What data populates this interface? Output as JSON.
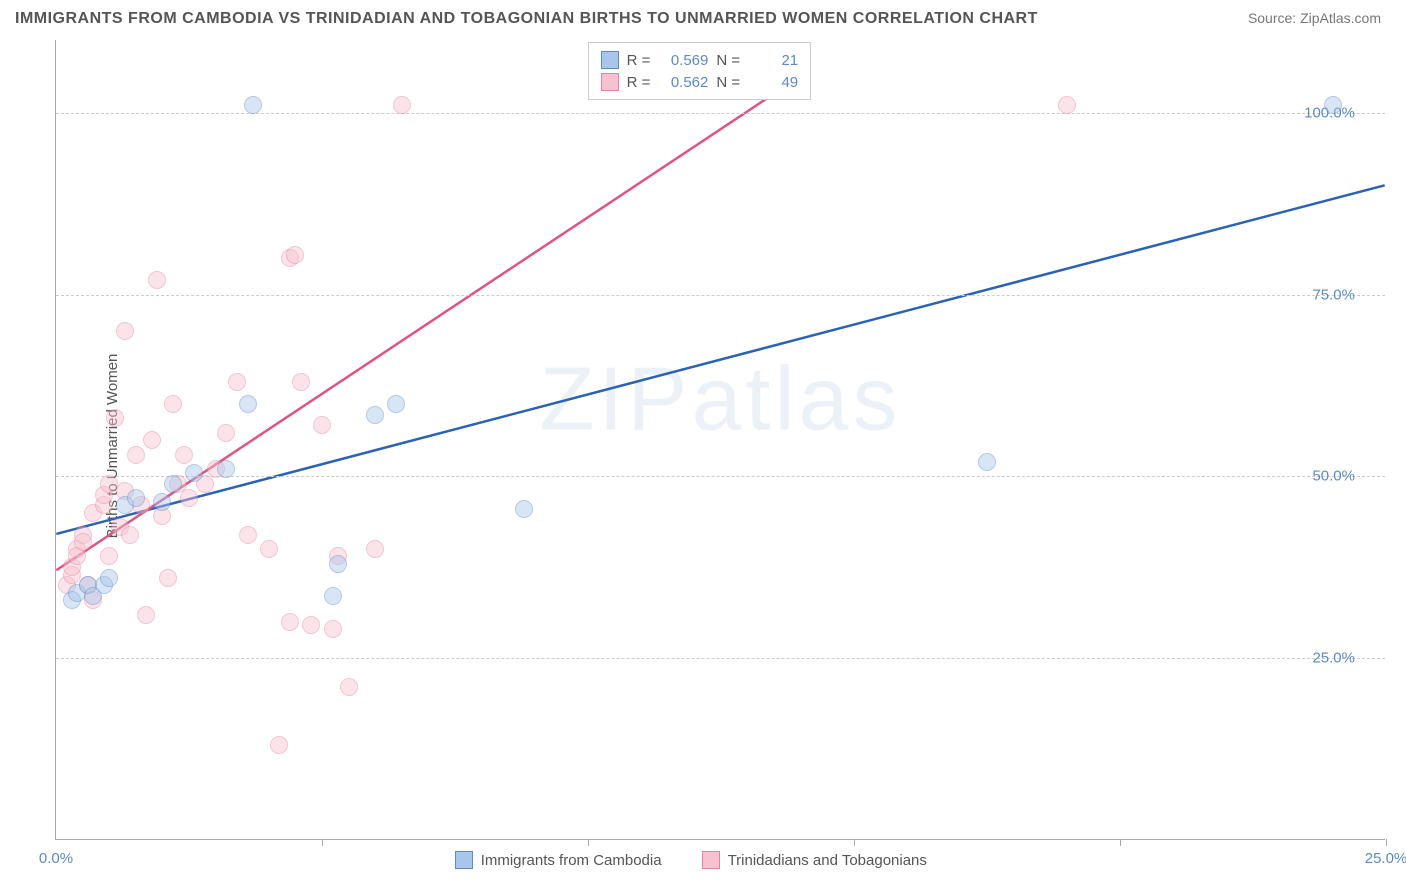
{
  "title": "IMMIGRANTS FROM CAMBODIA VS TRINIDADIAN AND TOBAGONIAN BIRTHS TO UNMARRIED WOMEN CORRELATION CHART",
  "source_label": "Source:",
  "source_value": "ZipAtlas.com",
  "ylabel": "Births to Unmarried Women",
  "watermark": "ZIPatlas",
  "chart": {
    "type": "scatter",
    "xlim": [
      0,
      25
    ],
    "ylim": [
      0,
      110
    ],
    "xticks": [
      0,
      5,
      10,
      15,
      20,
      25
    ],
    "yticks": [
      25,
      50,
      75,
      100
    ],
    "xtick_labels": [
      "0.0%",
      "",
      "",
      "",
      "",
      "25.0%"
    ],
    "ytick_labels": [
      "25.0%",
      "50.0%",
      "75.0%",
      "100.0%"
    ],
    "grid_color": "#cccccc",
    "background_color": "#ffffff",
    "point_radius": 9,
    "point_opacity": 0.45,
    "series": [
      {
        "name": "Immigrants from Cambodia",
        "color_fill": "#a8c6eb",
        "color_stroke": "#5b8ac6",
        "line_color": "#2a62b8",
        "R": "0.569",
        "N": "21",
        "trend": {
          "x1": 0,
          "y1": 42,
          "x2": 25,
          "y2": 90
        },
        "points": [
          [
            0.3,
            33
          ],
          [
            0.4,
            34
          ],
          [
            0.6,
            35
          ],
          [
            0.7,
            33.5
          ],
          [
            0.9,
            35
          ],
          [
            1.0,
            36
          ],
          [
            1.3,
            46
          ],
          [
            1.5,
            47
          ],
          [
            2.0,
            46.5
          ],
          [
            2.2,
            49
          ],
          [
            2.6,
            50.5
          ],
          [
            3.2,
            51
          ],
          [
            3.6,
            60
          ],
          [
            3.7,
            101
          ],
          [
            5.2,
            33.5
          ],
          [
            5.3,
            38
          ],
          [
            6.0,
            58.5
          ],
          [
            6.4,
            60
          ],
          [
            8.8,
            45.5
          ],
          [
            17.5,
            52
          ],
          [
            24.0,
            101
          ]
        ]
      },
      {
        "name": "Trinidadians and Tobagonians",
        "color_fill": "#f6c2cf",
        "color_stroke": "#e97fa2",
        "line_color": "#e05485",
        "R": "0.562",
        "N": "49",
        "trend": {
          "x1": 0,
          "y1": 37,
          "x2": 14,
          "y2": 105
        },
        "points": [
          [
            0.2,
            35
          ],
          [
            0.3,
            36.5
          ],
          [
            0.3,
            37.5
          ],
          [
            0.4,
            40
          ],
          [
            0.4,
            39
          ],
          [
            0.5,
            42
          ],
          [
            0.5,
            41
          ],
          [
            0.6,
            35
          ],
          [
            0.7,
            45
          ],
          [
            0.7,
            33
          ],
          [
            0.9,
            46
          ],
          [
            0.9,
            47.5
          ],
          [
            1.0,
            39
          ],
          [
            1.0,
            49
          ],
          [
            1.1,
            58
          ],
          [
            1.2,
            43
          ],
          [
            1.3,
            48
          ],
          [
            1.3,
            70
          ],
          [
            1.4,
            42
          ],
          [
            1.5,
            53
          ],
          [
            1.6,
            46
          ],
          [
            1.7,
            31
          ],
          [
            1.8,
            55
          ],
          [
            1.9,
            77
          ],
          [
            2.0,
            44.5
          ],
          [
            2.1,
            36
          ],
          [
            2.2,
            60
          ],
          [
            2.3,
            49
          ],
          [
            2.4,
            53
          ],
          [
            2.5,
            47
          ],
          [
            2.8,
            49
          ],
          [
            3.0,
            51
          ],
          [
            3.2,
            56
          ],
          [
            3.4,
            63
          ],
          [
            3.6,
            42
          ],
          [
            4.0,
            40
          ],
          [
            4.2,
            13
          ],
          [
            4.4,
            30
          ],
          [
            4.4,
            80
          ],
          [
            4.5,
            80.5
          ],
          [
            4.6,
            63
          ],
          [
            4.8,
            29.5
          ],
          [
            5.0,
            57
          ],
          [
            5.2,
            29
          ],
          [
            5.3,
            39
          ],
          [
            5.5,
            21
          ],
          [
            6.5,
            101
          ],
          [
            6.0,
            40
          ],
          [
            19.0,
            101
          ]
        ]
      }
    ]
  },
  "legend_top": {
    "r_label": "R =",
    "n_label": "N ="
  }
}
